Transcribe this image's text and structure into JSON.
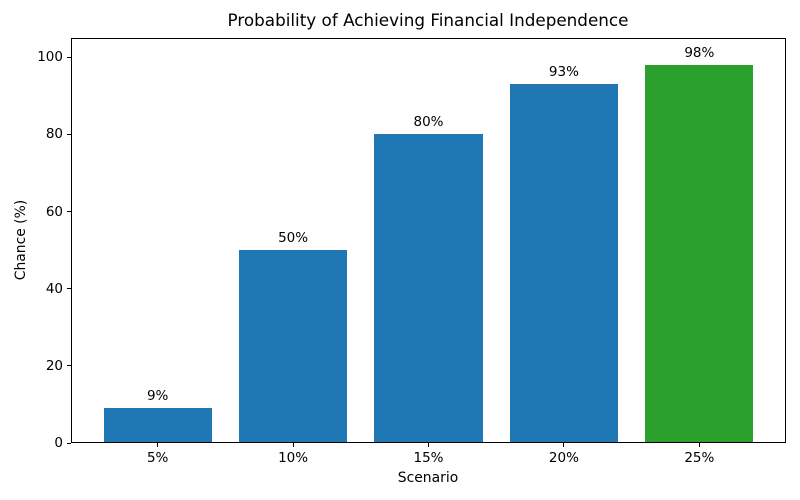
{
  "chart_data": {
    "type": "bar",
    "title": "Probability of Achieving Financial Independence",
    "xlabel": "Scenario",
    "ylabel": "Chance (%)",
    "categories": [
      "5%",
      "10%",
      "15%",
      "20%",
      "25%"
    ],
    "values": [
      9,
      50,
      80,
      93,
      98
    ],
    "bar_labels": [
      "9%",
      "50%",
      "80%",
      "93%",
      "98%"
    ],
    "bar_colors": [
      "#1f77b4",
      "#1f77b4",
      "#1f77b4",
      "#1f77b4",
      "#2ca02c"
    ],
    "bar_width": 0.8,
    "xlim": [
      -0.64,
      4.64
    ],
    "ylim": [
      0,
      105
    ],
    "yticks": [
      0,
      20,
      40,
      60,
      80,
      100
    ],
    "grid": false,
    "legend": null,
    "spine_color": "#000000",
    "text_color": "#000000",
    "background_color": "#ffffff"
  }
}
